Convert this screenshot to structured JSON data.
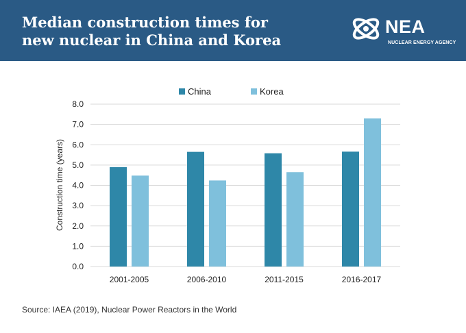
{
  "header": {
    "title_line1": "Median construction times for",
    "title_line2": "new nuclear in China and Korea",
    "logo_text": "NEA",
    "logo_subtext": "NUCLEAR ENERGY AGENCY"
  },
  "source": "Source: IAEA (2019), Nuclear Power Reactors in the World",
  "colors": {
    "header_bg": "#2a5a85",
    "china": "#2e87a8",
    "korea": "#7fc0dc",
    "grid": "#d9d9d9"
  },
  "chart_data": {
    "type": "bar",
    "categories": [
      "2001-2005",
      "2006-2010",
      "2011-2015",
      "2016-2017"
    ],
    "series": [
      {
        "name": "China",
        "values": [
          4.9,
          5.65,
          5.58,
          5.66
        ]
      },
      {
        "name": "Korea",
        "values": [
          4.48,
          4.24,
          4.65,
          7.3
        ]
      }
    ],
    "yticks": [
      "0.0",
      "1.0",
      "2.0",
      "3.0",
      "4.0",
      "5.0",
      "6.0",
      "7.0",
      "8.0"
    ],
    "ylim": [
      0,
      8
    ],
    "ylabel": "Construction time (years)",
    "xlabel": "",
    "legend_position": "top-center",
    "grid": true
  }
}
